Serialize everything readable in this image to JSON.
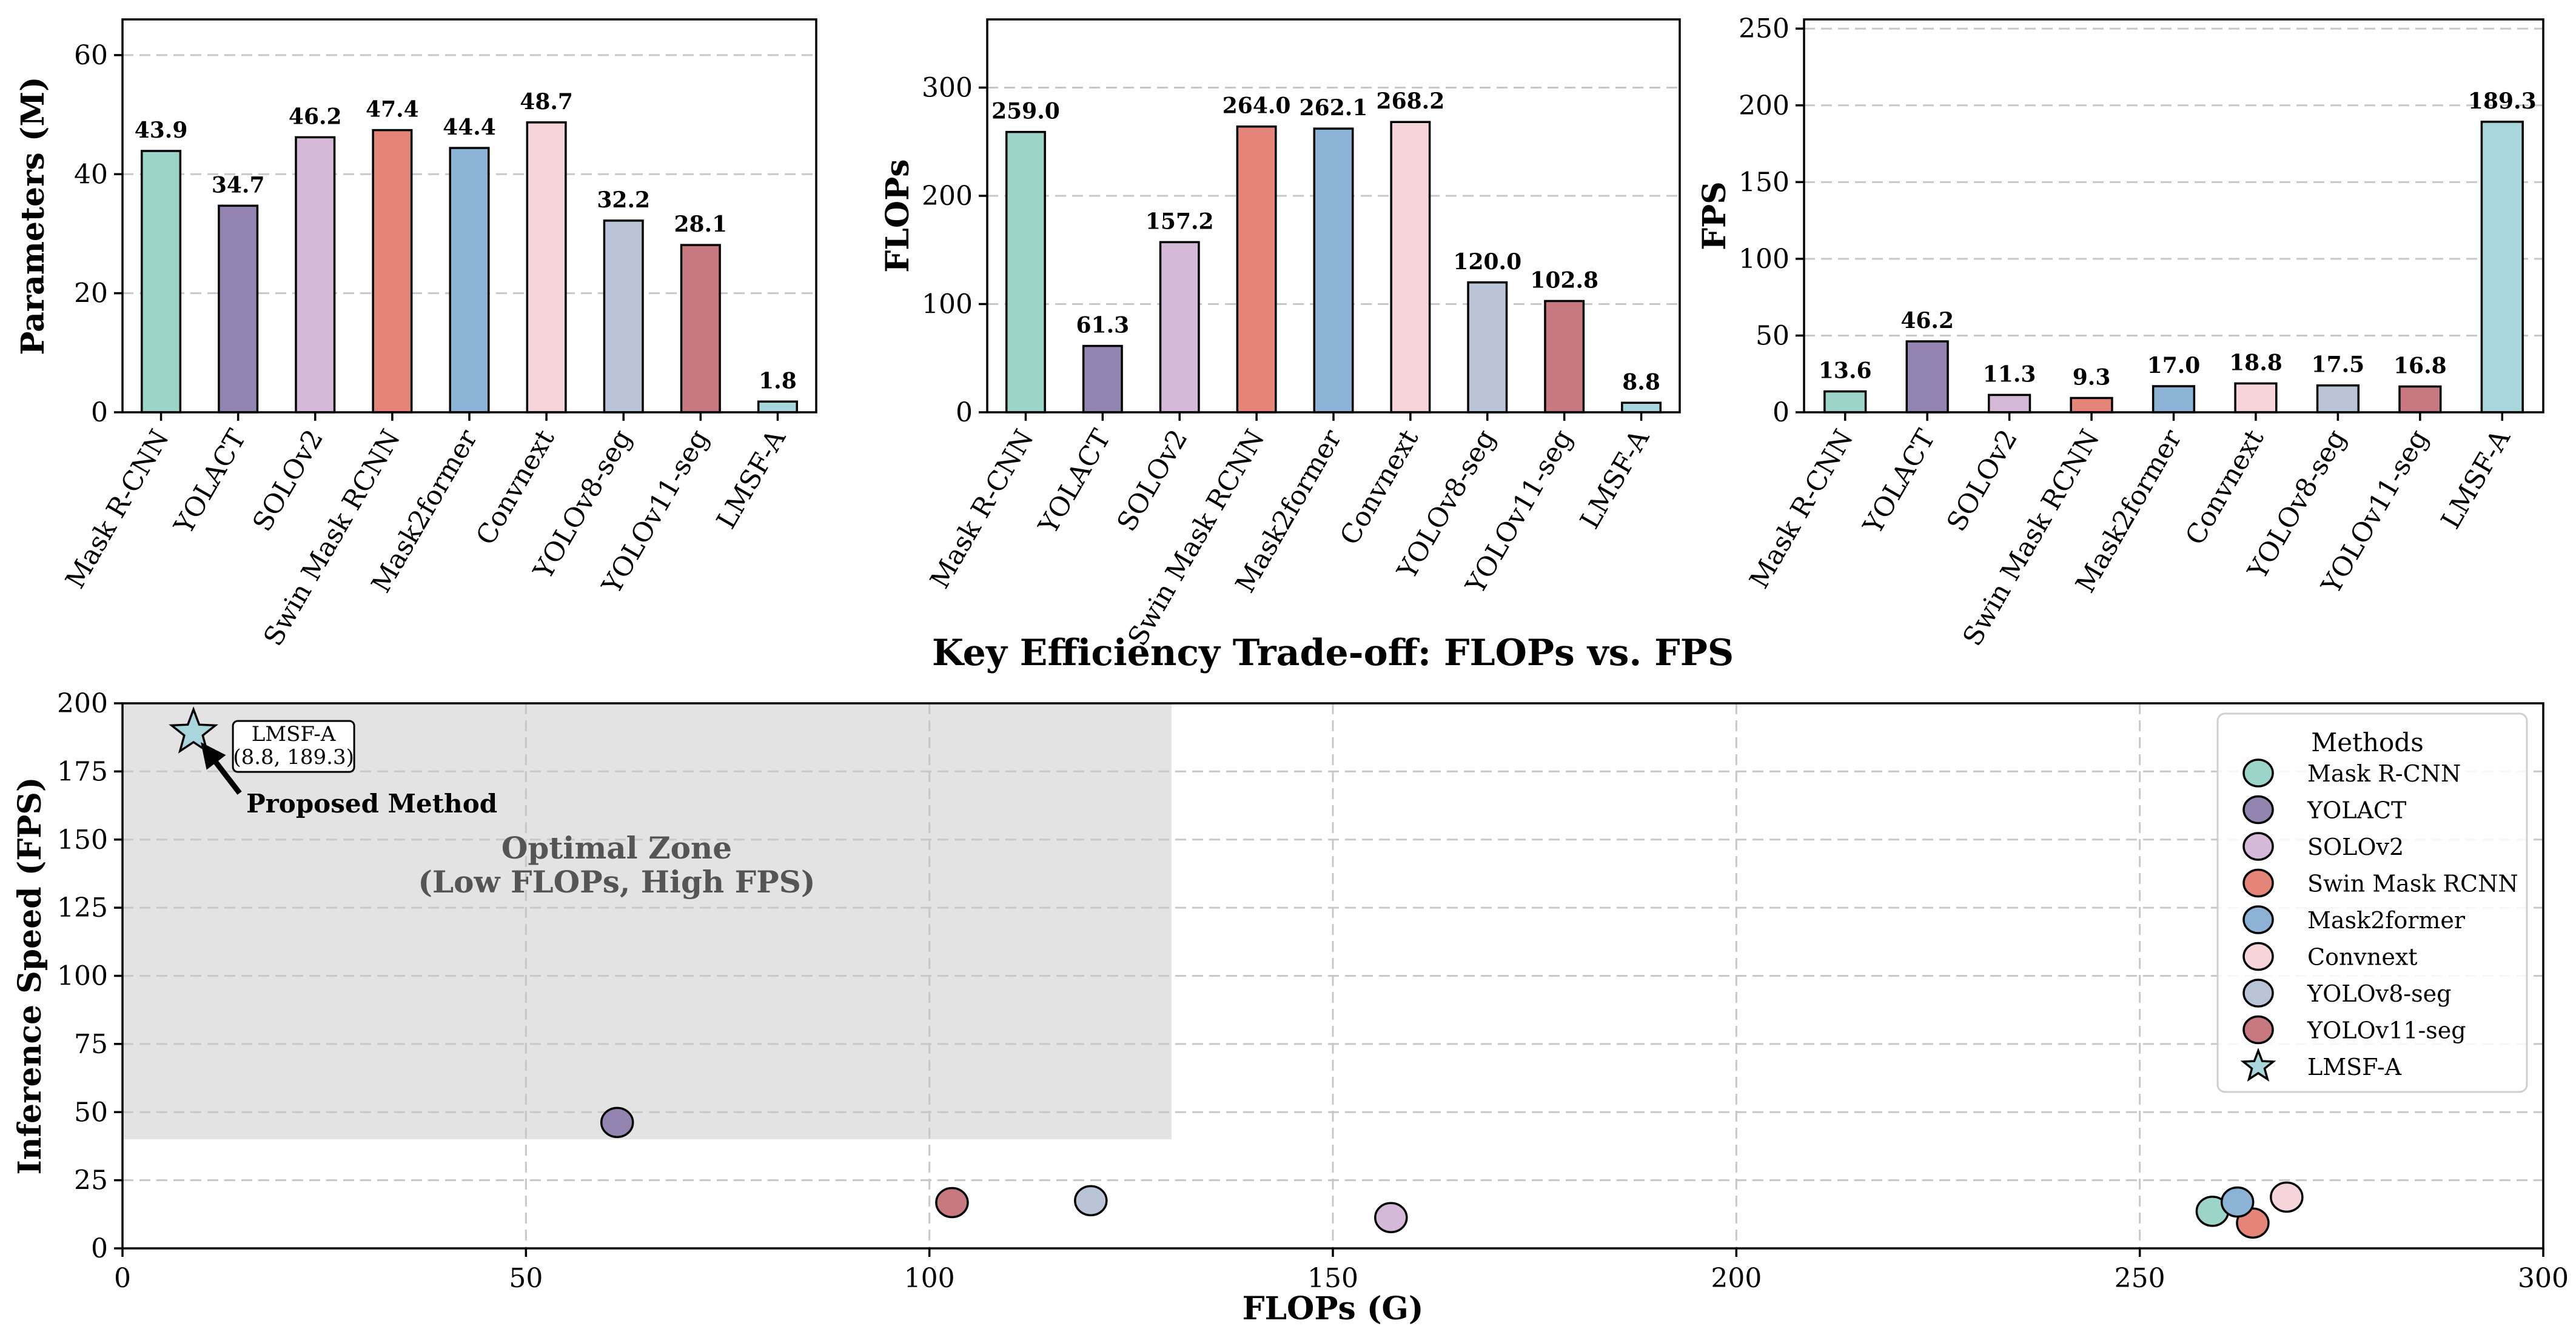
{
  "colors": {
    "Mask R-CNN": "#9dd4c9",
    "YOLACT": "#9384b0",
    "SOLOv2": "#d6b8d8",
    "Swin Mask RCNN": "#e5857a",
    "Mask2former": "#8cb3d5",
    "Convnext": "#f5d5d9",
    "YOLOv8-seg": "#bac4d9",
    "YOLOv11-seg": "#c87980",
    "LMSF-A": "#a9d6dd"
  },
  "chart_data": [
    {
      "type": "bar",
      "title": "",
      "xlabel": "",
      "ylabel": "Parameters (M)",
      "categories": [
        "Mask R-CNN",
        "YOLACT",
        "SOLOv2",
        "Swin Mask RCNN",
        "Mask2former",
        "Convnext",
        "YOLOv8-seg",
        "YOLOv11-seg",
        "LMSF-A"
      ],
      "values": [
        43.9,
        34.7,
        46.2,
        47.4,
        44.4,
        48.7,
        32.2,
        28.1,
        1.8
      ],
      "value_labels": [
        "43.9",
        "34.7",
        "46.2",
        "47.4",
        "44.4",
        "48.7",
        "32.2",
        "28.1",
        "1.8"
      ],
      "ylim": [
        0,
        66
      ],
      "yticks": [
        0,
        20,
        40,
        60
      ],
      "ytick_labels": [
        "0",
        "20",
        "40",
        "60"
      ],
      "grid": true
    },
    {
      "type": "bar",
      "title": "",
      "xlabel": "",
      "ylabel": "FLOPs",
      "categories": [
        "Mask R-CNN",
        "YOLACT",
        "SOLOv2",
        "Swin Mask RCNN",
        "Mask2former",
        "Convnext",
        "YOLOv8-seg",
        "YOLOv11-seg",
        "LMSF-A"
      ],
      "values": [
        259.0,
        61.3,
        157.2,
        264.0,
        262.1,
        268.2,
        120.0,
        102.8,
        8.8
      ],
      "value_labels": [
        "259.0",
        "61.3",
        "157.2",
        "264.0",
        "262.1",
        "268.2",
        "120.0",
        "102.8",
        "8.8"
      ],
      "ylim": [
        0,
        363
      ],
      "yticks": [
        0,
        100,
        200,
        300
      ],
      "ytick_labels": [
        "0",
        "100",
        "200",
        "300"
      ],
      "grid": true
    },
    {
      "type": "bar",
      "title": "",
      "xlabel": "",
      "ylabel": "FPS",
      "categories": [
        "Mask R-CNN",
        "YOLACT",
        "SOLOv2",
        "Swin Mask RCNN",
        "Mask2former",
        "Convnext",
        "YOLOv8-seg",
        "YOLOv11-seg",
        "LMSF-A"
      ],
      "values": [
        13.6,
        46.2,
        11.3,
        9.3,
        17.0,
        18.8,
        17.5,
        16.8,
        189.3
      ],
      "value_labels": [
        "13.6",
        "46.2",
        "11.3",
        "9.3",
        "17.0",
        "18.8",
        "17.5",
        "16.8",
        "189.3"
      ],
      "ylim": [
        0,
        256
      ],
      "yticks": [
        0,
        50,
        100,
        150,
        200,
        250
      ],
      "ytick_labels": [
        "0",
        "50",
        "100",
        "150",
        "200",
        "250"
      ],
      "grid": true
    },
    {
      "type": "scatter",
      "title": "Key Efficiency Trade-off: FLOPs vs. FPS",
      "xlabel": "FLOPs (G)",
      "ylabel": "Inference Speed (FPS)",
      "xlim": [
        0,
        300
      ],
      "ylim": [
        0,
        200
      ],
      "xticks": [
        0,
        50,
        100,
        150,
        200,
        250,
        300
      ],
      "xtick_labels": [
        "0",
        "50",
        "100",
        "150",
        "200",
        "250",
        "300"
      ],
      "yticks": [
        0,
        25,
        50,
        75,
        100,
        125,
        150,
        175,
        200
      ],
      "ytick_labels": [
        "0",
        "25",
        "50",
        "75",
        "100",
        "125",
        "150",
        "175",
        "200"
      ],
      "grid": true,
      "legend_title": "Methods",
      "legend_position": "top-right",
      "points": [
        {
          "name": "Mask R-CNN",
          "x": 259.0,
          "y": 13.6,
          "marker": "circle"
        },
        {
          "name": "YOLACT",
          "x": 61.3,
          "y": 46.2,
          "marker": "circle"
        },
        {
          "name": "SOLOv2",
          "x": 157.2,
          "y": 11.3,
          "marker": "circle"
        },
        {
          "name": "Swin Mask RCNN",
          "x": 264.0,
          "y": 9.3,
          "marker": "circle"
        },
        {
          "name": "Mask2former",
          "x": 262.1,
          "y": 17.0,
          "marker": "circle"
        },
        {
          "name": "Convnext",
          "x": 268.2,
          "y": 18.8,
          "marker": "circle"
        },
        {
          "name": "YOLOv8-seg",
          "x": 120.0,
          "y": 17.5,
          "marker": "circle"
        },
        {
          "name": "YOLOv11-seg",
          "x": 102.8,
          "y": 16.8,
          "marker": "circle"
        },
        {
          "name": "LMSF-A",
          "x": 8.8,
          "y": 189.3,
          "marker": "star"
        }
      ],
      "zone": {
        "x0": 0,
        "x1": 130,
        "y0": 40,
        "y1": 200,
        "label_line1": "Optimal Zone",
        "label_line2": "(Low FLOPs, High FPS)"
      },
      "point_annotation": {
        "line1": "LMSF-A",
        "line2": "(8.8, 189.3)"
      },
      "arrow_annotation": {
        "text": "Proposed Method"
      }
    }
  ]
}
